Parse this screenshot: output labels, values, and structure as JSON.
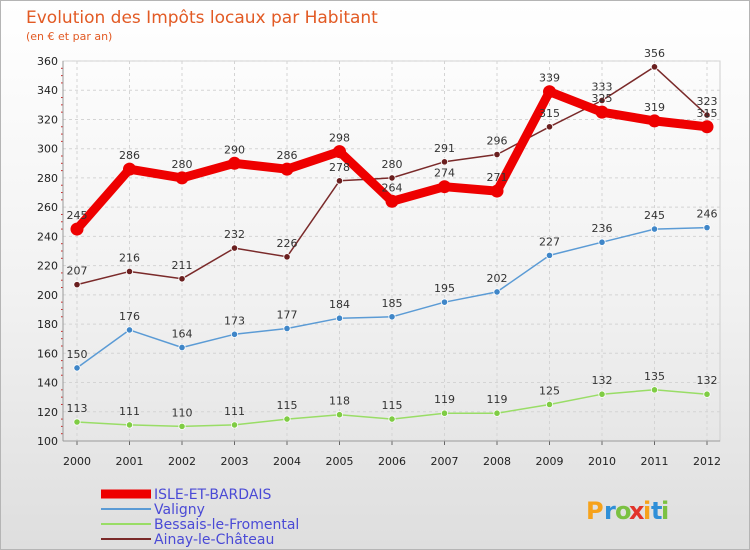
{
  "chart_data": {
    "type": "line",
    "title": "Evolution des Impôts locaux par Habitant",
    "subtitle": "(en € et par an)",
    "xlabel": "",
    "ylabel": "",
    "x": [
      "2000",
      "2001",
      "2002",
      "2003",
      "2004",
      "2005",
      "2006",
      "2007",
      "2008",
      "2009",
      "2010",
      "2011",
      "2012"
    ],
    "ylim": [
      100,
      360
    ],
    "yticks": [
      "100",
      "120",
      "140",
      "160",
      "180",
      "200",
      "220",
      "240",
      "260",
      "280",
      "300",
      "320",
      "340",
      "360"
    ],
    "grid": true,
    "legend_position": "bottom-left",
    "series": [
      {
        "name": "ISLE-ET-BARDAIS",
        "color": "#ee0000",
        "values": [
          245,
          286,
          280,
          290,
          286,
          298,
          264,
          274,
          271,
          339,
          325,
          319,
          315
        ]
      },
      {
        "name": "Valigny",
        "color": "#5b9bd5",
        "values": [
          150,
          176,
          164,
          173,
          177,
          184,
          185,
          195,
          202,
          227,
          236,
          245,
          246
        ]
      },
      {
        "name": "Bessais-le-Fromental",
        "color": "#99dd66",
        "values": [
          113,
          111,
          110,
          111,
          115,
          118,
          115,
          119,
          119,
          125,
          132,
          135,
          132
        ]
      },
      {
        "name": "Ainay-le-Château",
        "color": "#7a2a2a",
        "values": [
          207,
          216,
          211,
          232,
          226,
          278,
          280,
          291,
          296,
          315,
          333,
          356,
          323
        ]
      }
    ]
  },
  "brand": {
    "letters": [
      "P",
      "r",
      "o",
      "x",
      "i",
      "t",
      "i"
    ],
    "colors": [
      "#f6a21b",
      "#2f8fd8",
      "#7bc142",
      "#e2342b",
      "#f6a21b",
      "#2f8fd8",
      "#7bc142"
    ]
  }
}
